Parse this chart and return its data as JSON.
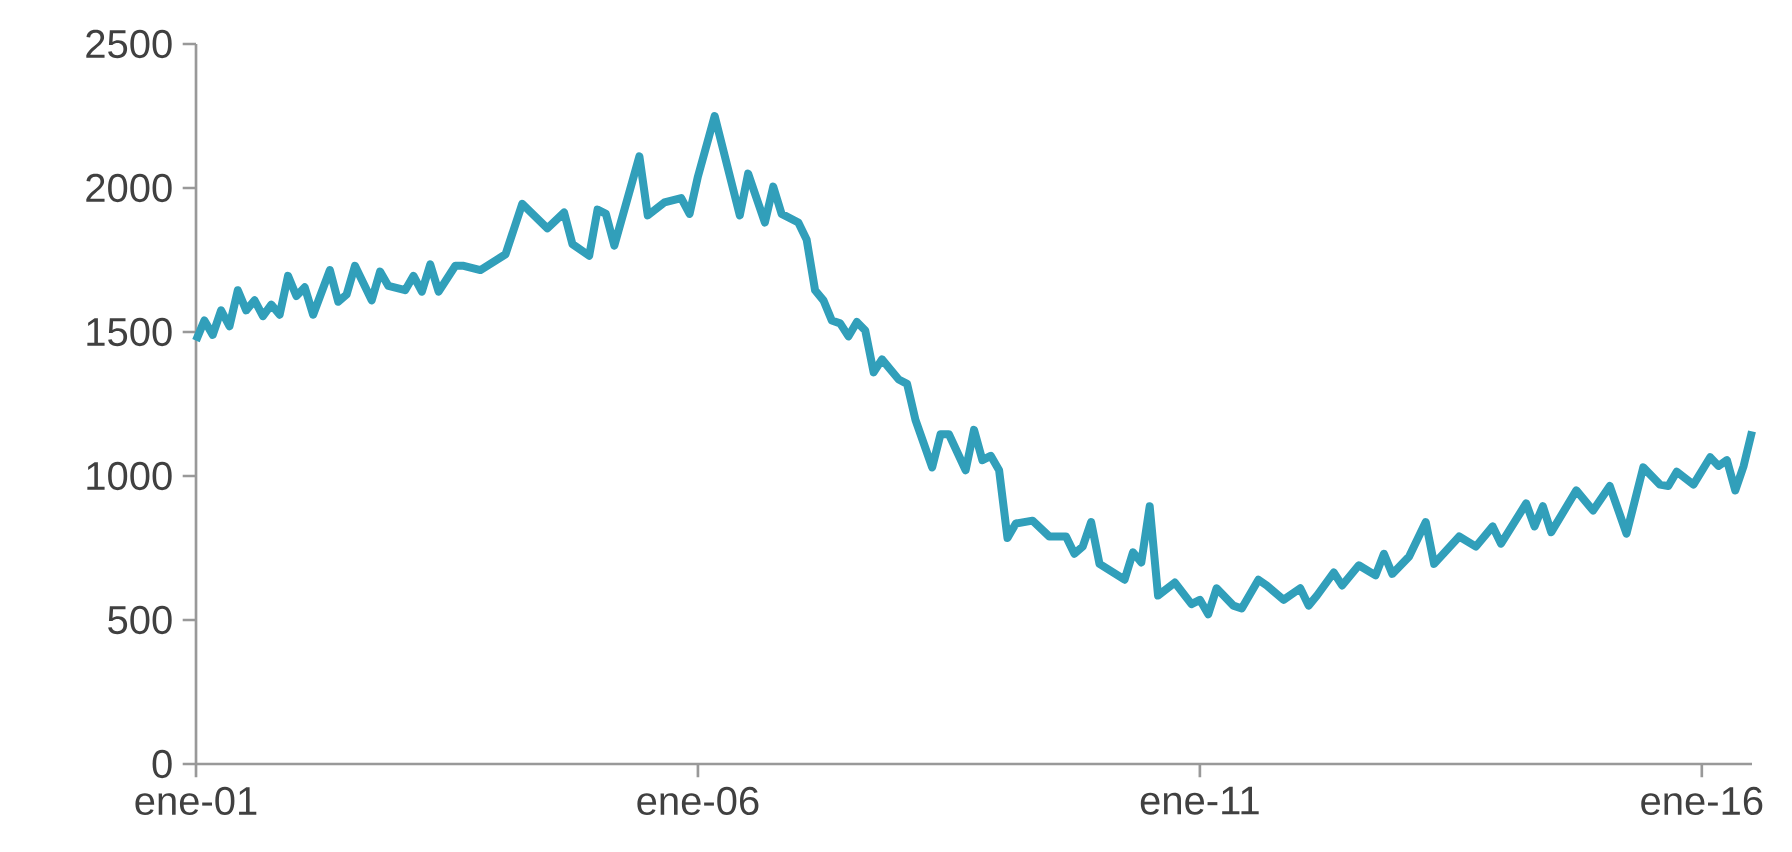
{
  "chart_data": {
    "type": "line",
    "color": "#319fba",
    "line_style": "solid",
    "marker": "none",
    "grid": false,
    "ylim": [
      0,
      2500
    ],
    "yticks": [
      0,
      500,
      1000,
      1500,
      2000,
      2500
    ],
    "xlim": [
      "2001-01",
      "2016-07"
    ],
    "xticks": [
      {
        "value": "2001-01",
        "label": "ene-01"
      },
      {
        "value": "2006-01",
        "label": "ene-06"
      },
      {
        "value": "2011-01",
        "label": "ene-11"
      },
      {
        "value": "2016-01",
        "label": "ene-16"
      }
    ],
    "x": [
      "2001-01",
      "2001-02",
      "2001-03",
      "2001-04",
      "2001-05",
      "2001-06",
      "2001-07",
      "2001-08",
      "2001-09",
      "2001-10",
      "2001-11",
      "2001-12",
      "2002-01",
      "2002-02",
      "2002-03",
      "2002-05",
      "2002-06",
      "2002-07",
      "2002-08",
      "2002-10",
      "2002-11",
      "2002-12",
      "2003-02",
      "2003-03",
      "2003-04",
      "2003-05",
      "2003-06",
      "2003-08",
      "2003-09",
      "2003-11",
      "2004-02",
      "2004-04",
      "2004-07",
      "2004-09",
      "2004-10",
      "2004-12",
      "2005-01",
      "2005-02",
      "2005-03",
      "2005-06",
      "2005-07",
      "2005-09",
      "2005-11",
      "2005-12",
      "2006-01",
      "2006-03",
      "2006-06",
      "2006-07",
      "2006-09",
      "2006-10",
      "2006-11",
      "2007-01",
      "2007-02",
      "2007-03",
      "2007-04",
      "2007-05",
      "2007-06",
      "2007-07",
      "2007-08",
      "2007-09",
      "2007-10",
      "2007-11",
      "2008-01",
      "2008-02",
      "2008-03",
      "2008-05",
      "2008-06",
      "2008-07",
      "2008-09",
      "2008-10",
      "2008-11",
      "2008-12",
      "2009-01",
      "2009-02",
      "2009-03",
      "2009-05",
      "2009-07",
      "2009-09",
      "2009-10",
      "2009-11",
      "2009-12",
      "2010-01",
      "2010-04",
      "2010-05",
      "2010-06",
      "2010-07",
      "2010-08",
      "2010-10",
      "2010-12",
      "2011-01",
      "2011-02",
      "2011-03",
      "2011-05",
      "2011-06",
      "2011-08",
      "2011-09",
      "2011-11",
      "2012-01",
      "2012-02",
      "2012-03",
      "2012-05",
      "2012-06",
      "2012-08",
      "2012-10",
      "2012-11",
      "2012-12",
      "2013-02",
      "2013-04",
      "2013-05",
      "2013-08",
      "2013-10",
      "2013-12",
      "2014-01",
      "2014-04",
      "2014-05",
      "2014-06",
      "2014-07",
      "2014-10",
      "2014-12",
      "2015-02",
      "2015-04",
      "2015-06",
      "2015-08",
      "2015-09",
      "2015-10",
      "2015-12",
      "2016-02",
      "2016-03",
      "2016-04",
      "2016-05",
      "2016-06",
      "2016-07"
    ],
    "values": [
      1470,
      1540,
      1490,
      1575,
      1520,
      1645,
      1575,
      1610,
      1555,
      1595,
      1560,
      1695,
      1625,
      1655,
      1560,
      1715,
      1605,
      1630,
      1730,
      1610,
      1710,
      1660,
      1645,
      1695,
      1640,
      1735,
      1640,
      1730,
      1730,
      1715,
      1770,
      1945,
      1860,
      1915,
      1805,
      1765,
      1925,
      1910,
      1800,
      2110,
      1905,
      1950,
      1965,
      1910,
      2040,
      2250,
      1905,
      2050,
      1880,
      2005,
      1910,
      1880,
      1820,
      1645,
      1610,
      1540,
      1530,
      1485,
      1535,
      1505,
      1360,
      1405,
      1335,
      1320,
      1195,
      1030,
      1145,
      1145,
      1020,
      1160,
      1055,
      1070,
      1020,
      785,
      835,
      845,
      790,
      790,
      730,
      755,
      840,
      695,
      640,
      735,
      700,
      895,
      585,
      630,
      555,
      570,
      520,
      610,
      550,
      540,
      640,
      620,
      570,
      610,
      550,
      585,
      665,
      620,
      690,
      655,
      730,
      660,
      720,
      840,
      695,
      790,
      755,
      825,
      765,
      905,
      825,
      895,
      805,
      950,
      880,
      965,
      800,
      1030,
      970,
      965,
      1015,
      970,
      1065,
      1035,
      1055,
      950,
      1035,
      1155
    ]
  }
}
